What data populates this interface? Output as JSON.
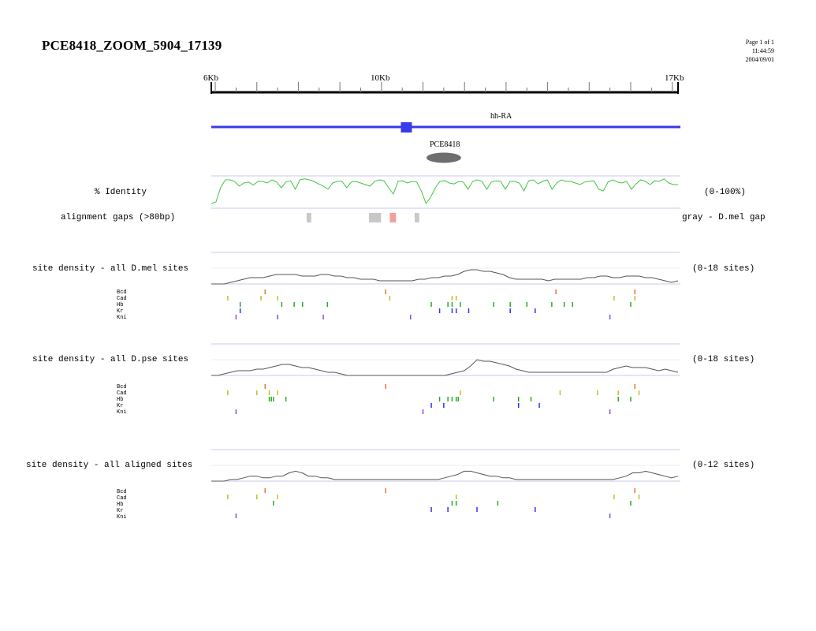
{
  "header": {
    "title": "PCE8418_ZOOM_5904_17139",
    "page": "Page 1 of 1",
    "time": "11:44:59",
    "date": "2004/09/01"
  },
  "ruler": {
    "labels": [
      {
        "text": "6Kb",
        "kb": 6
      },
      {
        "text": "10Kb",
        "kb": 10
      },
      {
        "text": "17Kb",
        "kb": 17
      }
    ],
    "range_kb": [
      5.904,
      17.139
    ]
  },
  "gene": {
    "name": "hh-RA",
    "exon_kb": 10.6
  },
  "element": {
    "name": "PCE8418",
    "center_kb": 11.5
  },
  "identity": {
    "label": "% Identity",
    "range": "(0-100%)",
    "values": [
      10,
      15,
      60,
      85,
      85,
      80,
      65,
      75,
      78,
      68,
      80,
      80,
      75,
      85,
      78,
      60,
      78,
      82,
      55,
      85,
      88,
      85,
      80,
      72,
      65,
      55,
      75,
      80,
      80,
      60,
      78,
      80,
      75,
      70,
      65,
      80,
      85,
      82,
      60,
      40,
      80,
      82,
      75,
      80,
      78,
      50,
      10,
      30,
      60,
      80,
      82,
      75,
      72,
      80,
      78,
      55,
      80,
      85,
      80,
      55,
      78,
      82,
      80,
      55,
      80,
      80,
      75,
      50,
      82,
      85,
      72,
      80,
      85,
      55,
      75,
      85,
      80,
      80,
      75,
      70,
      78,
      80,
      82,
      55,
      50,
      78,
      85,
      78,
      75,
      80,
      55,
      72,
      85,
      80,
      70,
      82,
      80,
      88,
      75,
      70,
      70
    ]
  },
  "gaps": {
    "label": "alignment gaps (>80bp)",
    "legend": "gray - D.mel gap",
    "colors": {
      "gray": "#c8c8c8",
      "red": "#f0a0a0"
    },
    "items": [
      {
        "start_kb": 8.2,
        "end_kb": 8.31,
        "color": "gray"
      },
      {
        "start_kb": 9.7,
        "end_kb": 9.99,
        "color": "gray"
      },
      {
        "start_kb": 10.2,
        "end_kb": 10.35,
        "color": "red"
      },
      {
        "start_kb": 10.8,
        "end_kb": 10.91,
        "color": "gray"
      }
    ]
  },
  "factor_colors": {
    "Bcd": "#f07030",
    "Cad": "#c0c020",
    "Hb": "#20b020",
    "Kr": "#3030f0",
    "Kni": "#8050e0"
  },
  "tracks": [
    {
      "id": "dmel",
      "label": "site density - all D.mel sites",
      "range": "(0-18 sites)",
      "density": [
        0,
        0,
        0,
        1,
        2,
        3,
        4,
        4,
        4,
        5,
        6,
        6,
        6,
        6,
        5,
        5,
        5,
        6,
        6,
        5,
        5,
        4,
        4,
        3,
        3,
        3,
        2,
        2,
        2,
        2,
        2,
        2,
        3,
        3,
        4,
        4,
        5,
        5,
        6,
        8,
        9,
        9,
        8,
        8,
        7,
        6,
        4,
        3,
        3,
        3,
        3,
        3,
        2,
        3,
        3,
        3,
        3,
        3,
        4,
        4,
        5,
        5,
        4,
        4,
        5,
        5,
        5,
        4,
        4,
        3,
        2,
        1,
        2
      ],
      "factors": [
        {
          "name": "Bcd",
          "kb": [
            7.2,
            10.1,
            14.2,
            16.1
          ]
        },
        {
          "name": "Cad",
          "kb": [
            6.3,
            7.1,
            7.5,
            10.2,
            11.7,
            11.8,
            15.6,
            16.1
          ]
        },
        {
          "name": "Hb",
          "kb": [
            6.6,
            7.6,
            7.9,
            8.1,
            8.7,
            11.2,
            11.6,
            11.7,
            11.9,
            12.7,
            13.1,
            13.5,
            14.1,
            14.4,
            14.6,
            16.0
          ]
        },
        {
          "name": "Kr",
          "kb": [
            6.6,
            11.4,
            11.7,
            11.8,
            12.1,
            13.1,
            13.7
          ]
        },
        {
          "name": "Kni",
          "kb": [
            6.5,
            7.5,
            8.6,
            10.7,
            15.5
          ]
        }
      ]
    },
    {
      "id": "dpse",
      "label": "site density - all D.pse sites",
      "range": "(0-18 sites)",
      "density": [
        0,
        0,
        1,
        2,
        3,
        3,
        3,
        4,
        4,
        5,
        6,
        7,
        7,
        6,
        5,
        5,
        4,
        3,
        2,
        2,
        1,
        0,
        0,
        0,
        0,
        0,
        0,
        0,
        0,
        0,
        0,
        0,
        0,
        0,
        0,
        0,
        0,
        1,
        2,
        3,
        6,
        10,
        9,
        9,
        8,
        7,
        6,
        4,
        3,
        2,
        2,
        2,
        2,
        2,
        2,
        2,
        2,
        2,
        2,
        2,
        2,
        2,
        4,
        5,
        6,
        5,
        5,
        5,
        4,
        3,
        4,
        3,
        2
      ],
      "factors": [
        {
          "name": "Bcd",
          "kb": [
            7.2,
            10.1,
            16.1
          ]
        },
        {
          "name": "Cad",
          "kb": [
            6.3,
            7.0,
            7.3,
            7.5,
            11.9,
            14.3,
            15.2,
            15.7,
            16.2
          ]
        },
        {
          "name": "Hb",
          "kb": [
            7.3,
            7.35,
            7.4,
            7.7,
            11.4,
            11.6,
            11.7,
            11.8,
            11.85,
            12.7,
            13.3,
            13.6,
            15.7,
            16.0
          ]
        },
        {
          "name": "Kr",
          "kb": [
            11.2,
            11.5,
            13.3,
            13.8
          ]
        },
        {
          "name": "Kni",
          "kb": [
            6.5,
            11.0,
            15.5
          ]
        }
      ]
    },
    {
      "id": "aligned",
      "label": "site density - all aligned sites",
      "range": "(0-12 sites)",
      "density": [
        0,
        0,
        0,
        1,
        1,
        2,
        3,
        3,
        2,
        2,
        3,
        3,
        5,
        6,
        5,
        3,
        3,
        2,
        2,
        1,
        1,
        1,
        1,
        1,
        1,
        1,
        1,
        1,
        1,
        1,
        1,
        1,
        1,
        1,
        1,
        1,
        2,
        3,
        4,
        6,
        6,
        5,
        4,
        3,
        3,
        2,
        2,
        1,
        1,
        1,
        1,
        1,
        1,
        1,
        1,
        1,
        1,
        1,
        1,
        1,
        1,
        1,
        1,
        2,
        3,
        5,
        5,
        6,
        5,
        4,
        3,
        2,
        3
      ],
      "factors": [
        {
          "name": "Bcd",
          "kb": [
            7.2,
            10.1,
            16.1
          ]
        },
        {
          "name": "Cad",
          "kb": [
            6.3,
            7.0,
            7.5,
            11.8,
            15.6,
            16.2
          ]
        },
        {
          "name": "Hb",
          "kb": [
            7.4,
            11.7,
            11.8,
            12.8,
            16.0
          ]
        },
        {
          "name": "Kr",
          "kb": [
            11.2,
            11.6,
            12.3,
            13.7
          ]
        },
        {
          "name": "Kni",
          "kb": [
            6.5,
            15.5
          ]
        }
      ]
    }
  ]
}
